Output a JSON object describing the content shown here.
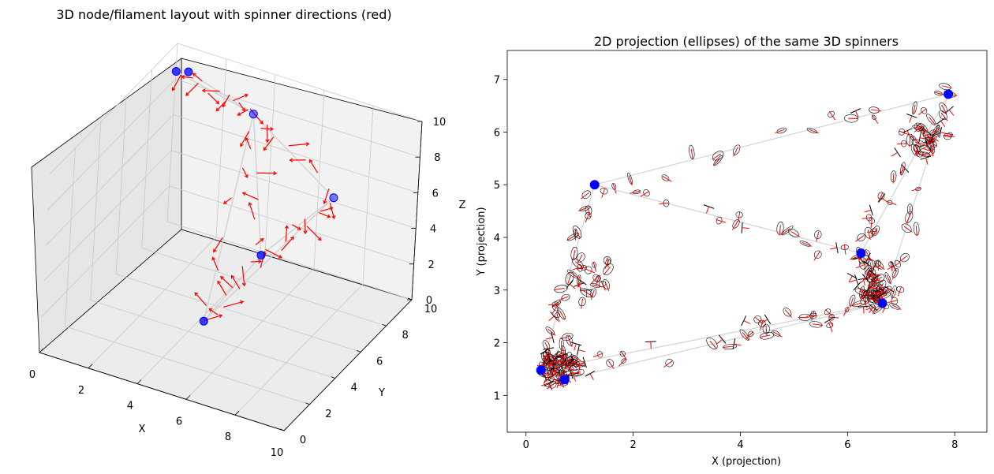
{
  "chart_data": [
    {
      "type": "scatter3d",
      "title": "3D node/filament layout with spinner directions (red)",
      "xlabel": "X",
      "ylabel": "Y",
      "zlabel": "Z",
      "xlim": [
        0,
        10
      ],
      "ylim": [
        0,
        10
      ],
      "zlim": [
        0,
        10
      ],
      "x_ticks": [
        "0",
        "2",
        "4",
        "6",
        "8",
        "10"
      ],
      "y_ticks": [
        "0",
        "2",
        "4",
        "6",
        "8",
        "10"
      ],
      "z_ticks": [
        "0",
        "2",
        "4",
        "6",
        "8",
        "10"
      ],
      "grid": true,
      "nodes": [
        {
          "x": 0.3,
          "y": 9.4,
          "z": 9.0
        },
        {
          "x": 0.7,
          "y": 9.6,
          "z": 9.0
        },
        {
          "x": 3.6,
          "y": 9.2,
          "z": 8.2
        },
        {
          "x": 6.5,
          "y": 4.5,
          "z": 5.0
        },
        {
          "x": 8.8,
          "y": 5.5,
          "z": 8.5
        },
        {
          "x": 5.8,
          "y": 1.5,
          "z": 3.2
        }
      ],
      "filaments": [
        [
          0,
          2
        ],
        [
          1,
          2
        ],
        [
          2,
          3
        ],
        [
          2,
          4
        ],
        [
          3,
          4
        ],
        [
          3,
          5
        ],
        [
          5,
          2
        ],
        [
          5,
          4
        ]
      ],
      "arrows_per_filament": 6,
      "colors": {
        "nodes": "#0000ff",
        "arrows": "#ff0000",
        "filaments": "#d3d3d3"
      }
    },
    {
      "type": "scatter",
      "title": "2D projection (ellipses) of the same 3D spinners",
      "xlabel": "X (projection)",
      "ylabel": "Y (projection)",
      "xlim": [
        -0.35,
        8.6
      ],
      "ylim": [
        0.3,
        7.55
      ],
      "x_ticks": [
        0,
        2,
        4,
        6,
        8
      ],
      "y_ticks": [
        1,
        2,
        3,
        4,
        5,
        6,
        7
      ],
      "grid": false,
      "nodes": [
        {
          "x": 7.88,
          "y": 6.72
        },
        {
          "x": 1.28,
          "y": 5.0
        },
        {
          "x": 6.25,
          "y": 3.7
        },
        {
          "x": 6.65,
          "y": 2.75
        },
        {
          "x": 0.28,
          "y": 1.48
        },
        {
          "x": 0.72,
          "y": 1.3
        }
      ],
      "filaments": [
        [
          0,
          1
        ],
        [
          1,
          4
        ],
        [
          1,
          2
        ],
        [
          2,
          0
        ],
        [
          2,
          3
        ],
        [
          3,
          5
        ],
        [
          4,
          5
        ],
        [
          3,
          4
        ],
        [
          0,
          3
        ]
      ],
      "clusters": [
        {
          "x": 0.6,
          "y": 1.6,
          "spread": 0.35,
          "count": 60
        },
        {
          "x": 6.5,
          "y": 3.1,
          "spread": 0.35,
          "count": 50
        },
        {
          "x": 7.4,
          "y": 5.8,
          "spread": 0.4,
          "count": 30
        },
        {
          "x": 1.1,
          "y": 3.2,
          "spread": 0.45,
          "count": 25
        }
      ],
      "filament_spinners": 18,
      "colors": {
        "nodes": "#0000ff",
        "ticks_red": "#ff0000",
        "ticks_black": "#000000",
        "ellipses": "#000000",
        "filaments": "#d3d3d3"
      }
    }
  ]
}
